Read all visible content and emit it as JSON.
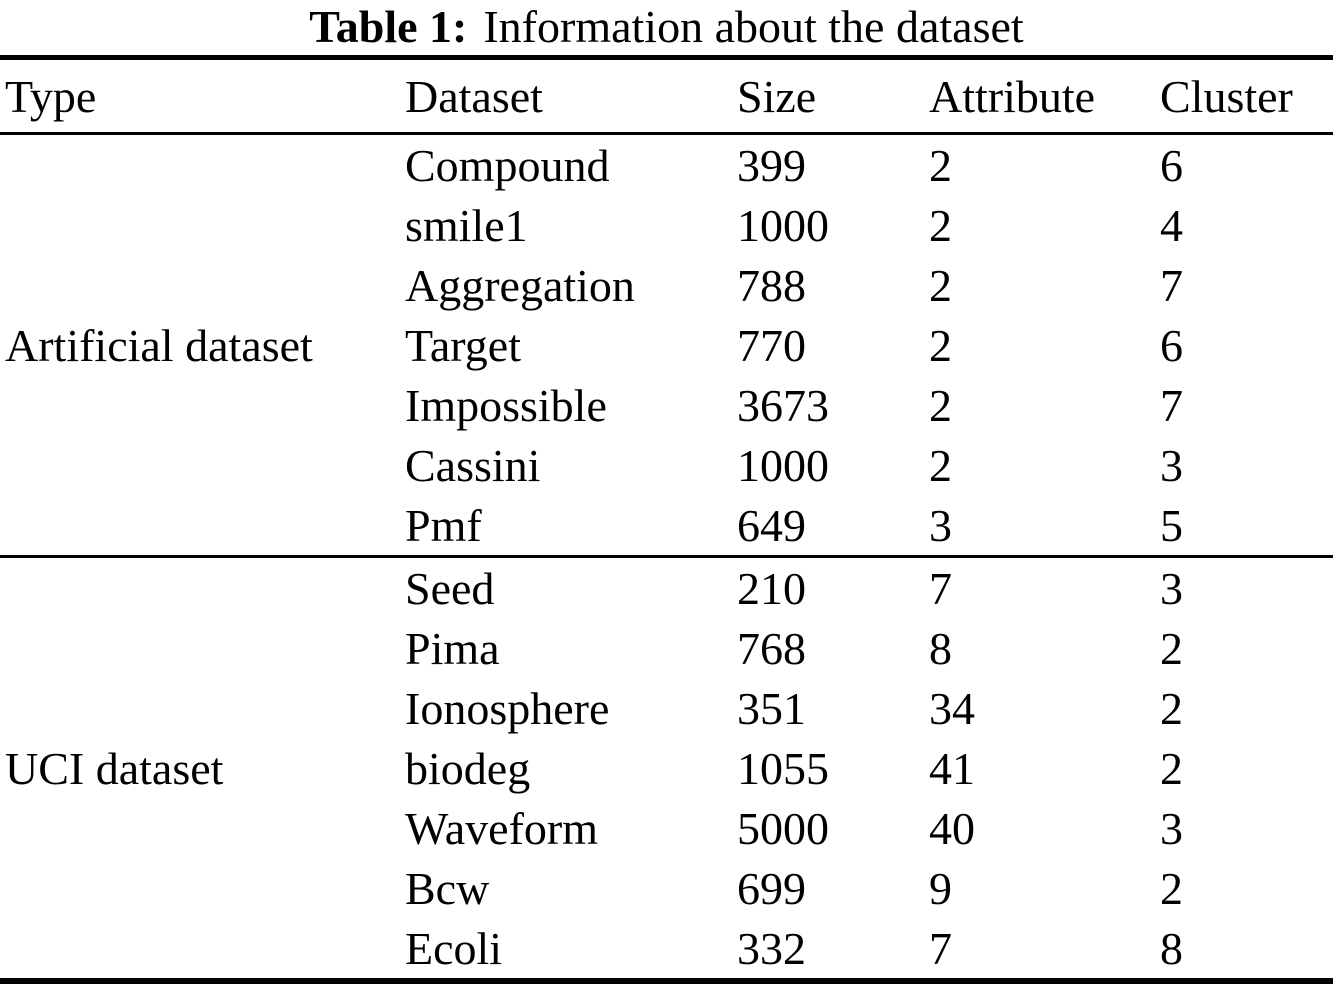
{
  "caption": {
    "label": "Table 1:",
    "text": "Information about the dataset"
  },
  "table": {
    "headers": [
      "Type",
      "Dataset",
      "Size",
      "Attribute",
      "Cluster"
    ],
    "groups": [
      {
        "type": "Artificial dataset",
        "rows": [
          {
            "dataset": "Compound",
            "size": "399",
            "attribute": "2",
            "cluster": "6"
          },
          {
            "dataset": "smile1",
            "size": "1000",
            "attribute": "2",
            "cluster": "4"
          },
          {
            "dataset": "Aggregation",
            "size": "788",
            "attribute": "2",
            "cluster": "7"
          },
          {
            "dataset": "Target",
            "size": "770",
            "attribute": "2",
            "cluster": "6"
          },
          {
            "dataset": "Impossible",
            "size": "3673",
            "attribute": "2",
            "cluster": "7"
          },
          {
            "dataset": "Cassini",
            "size": "1000",
            "attribute": "2",
            "cluster": "3"
          },
          {
            "dataset": "Pmf",
            "size": "649",
            "attribute": "3",
            "cluster": "5"
          }
        ]
      },
      {
        "type": "UCI dataset",
        "rows": [
          {
            "dataset": "Seed",
            "size": "210",
            "attribute": "7",
            "cluster": "3"
          },
          {
            "dataset": "Pima",
            "size": "768",
            "attribute": "8",
            "cluster": "2"
          },
          {
            "dataset": "Ionosphere",
            "size": "351",
            "attribute": "34",
            "cluster": "2"
          },
          {
            "dataset": "biodeg",
            "size": "1055",
            "attribute": "41",
            "cluster": "2"
          },
          {
            "dataset": "Waveform",
            "size": "5000",
            "attribute": "40",
            "cluster": "3"
          },
          {
            "dataset": "Bcw",
            "size": "699",
            "attribute": "9",
            "cluster": "2"
          },
          {
            "dataset": "Ecoli",
            "size": "332",
            "attribute": "7",
            "cluster": "8"
          }
        ]
      }
    ]
  },
  "colors": {
    "text": "#000000",
    "background": "#ffffff",
    "rule": "#000000"
  }
}
